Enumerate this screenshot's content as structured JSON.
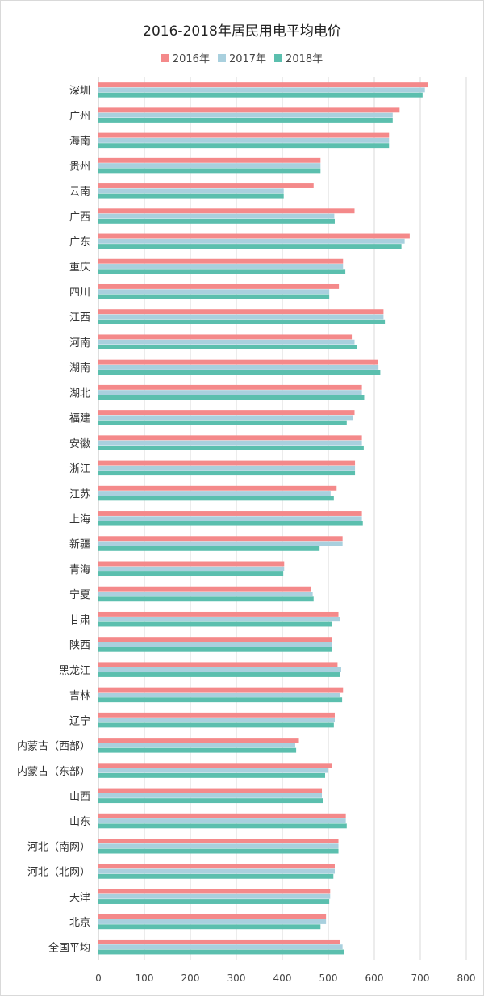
{
  "chart_data": {
    "type": "bar",
    "orientation": "horizontal",
    "title": "2016-2018年居民用电平均电价",
    "xlim": [
      0,
      800
    ],
    "x_ticks": [
      "0",
      "100",
      "200",
      "300",
      "400",
      "500",
      "600",
      "700",
      "800"
    ],
    "grid": "vertical",
    "legend_position": "top",
    "categories": [
      "深圳",
      "广州",
      "海南",
      "贵州",
      "云南",
      "广西",
      "广东",
      "重庆",
      "四川",
      "江西",
      "河南",
      "湖南",
      "湖北",
      "福建",
      "安徽",
      "浙江",
      "江苏",
      "上海",
      "新疆",
      "青海",
      "宁夏",
      "甘肃",
      "陕西",
      "黑龙江",
      "吉林",
      "辽宁",
      "内蒙古（西部）",
      "内蒙古（东部）",
      "山西",
      "山东",
      "河北（南网）",
      "河北（北网）",
      "天津",
      "北京",
      "全国平均"
    ],
    "series": [
      {
        "name": "2016年",
        "color": "#F4898A",
        "values": [
          716,
          655,
          632,
          483,
          468,
          557,
          677,
          532,
          523,
          620,
          551,
          608,
          573,
          557,
          573,
          558,
          518,
          573,
          531,
          404,
          463,
          522,
          507,
          520,
          532,
          514,
          436,
          508,
          486,
          538,
          522,
          514,
          504,
          495,
          526
        ]
      },
      {
        "name": "2017年",
        "color": "#A9D0DE",
        "values": [
          710,
          640,
          632,
          483,
          403,
          513,
          666,
          532,
          502,
          620,
          557,
          609,
          573,
          553,
          573,
          558,
          505,
          573,
          531,
          404,
          466,
          526,
          507,
          528,
          526,
          514,
          428,
          500,
          486,
          538,
          522,
          514,
          504,
          495,
          531
        ]
      },
      {
        "name": "2018年",
        "color": "#5BBFAE",
        "values": [
          705,
          640,
          632,
          483,
          403,
          514,
          659,
          537,
          502,
          623,
          562,
          613,
          578,
          540,
          577,
          558,
          512,
          575,
          481,
          402,
          468,
          508,
          507,
          525,
          530,
          512,
          430,
          493,
          488,
          540,
          522,
          511,
          502,
          483,
          534
        ]
      }
    ]
  }
}
